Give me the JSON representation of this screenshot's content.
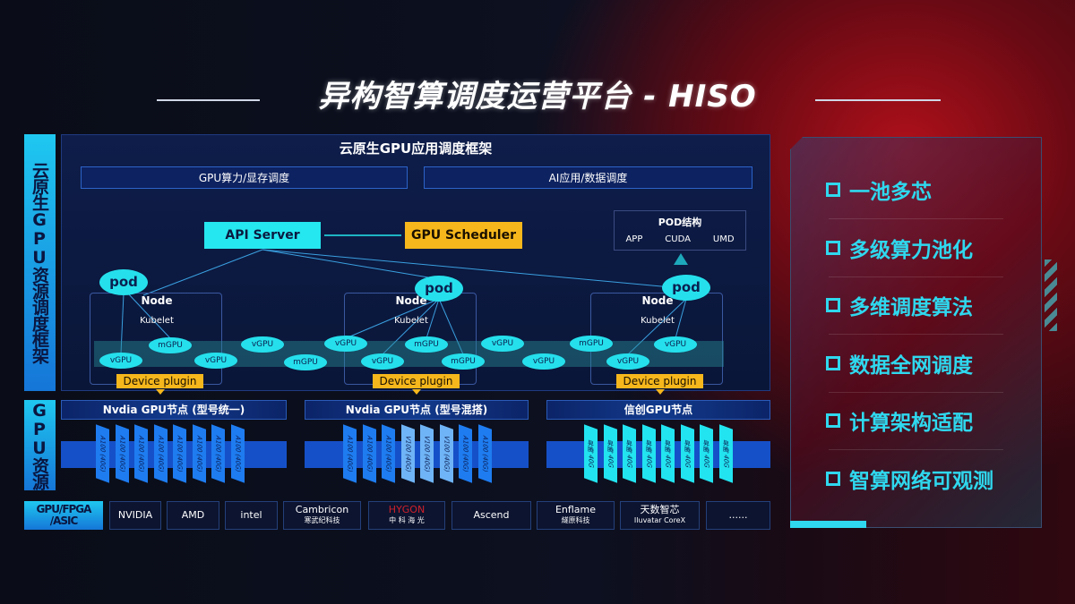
{
  "title": "异构智算调度运营平台 - HISO",
  "left_labels": {
    "framework": "云原生GPU资源调度框架",
    "gpu": "GPU资源",
    "chips": "GPU/FPGA /ASIC"
  },
  "framework": {
    "header": "云原生GPU应用调度框架",
    "sub1": "GPU算力/显存调度",
    "sub2": "AI应用/数据调度",
    "api_server": "API Server",
    "gpu_scheduler": "GPU Scheduler",
    "pod_struct": {
      "title": "POD结构",
      "items": [
        "APP",
        "CUDA",
        "UMD"
      ]
    },
    "node_label": "Node",
    "kubelet_label": "Kubelet",
    "pod_label": "pod",
    "device_plugin": "Device plugin",
    "units": [
      "vGPU",
      "mGPU",
      "vGPU",
      "vGPU",
      "mGPU",
      "vGPU",
      "vGPU",
      "mGPU",
      "mGPU",
      "vGPU",
      "vGPU",
      "mGPU",
      "vGPU",
      "vGPU"
    ]
  },
  "gpu_nodes": [
    {
      "title": "Nvdia GPU节点 (型号统一)",
      "cards": [
        "A100 (40G)",
        "A100 (40G)",
        "A100 (40G)",
        "A100 (40G)",
        "A100 (40G)",
        "A100 (40G)",
        "A100 (40G)",
        "A100 (40G)"
      ],
      "color": "#1e7cf0"
    },
    {
      "title": "Nvdia GPU节点 (型号混搭)",
      "cards": [
        "A100 (40G)",
        "A100 (40G)",
        "A100 (40G)",
        "V100 (40G)",
        "V100 (40G)",
        "V100 (40G)",
        "A100 (40G)",
        "A100 (40G)"
      ],
      "color": "#1e7cf0",
      "alt_color": "#6fb4f6"
    },
    {
      "title": "信创GPU节点",
      "cards": [
        "昇腾 40G",
        "昇腾 40G",
        "昇腾 40G",
        "昇腾 40G",
        "昇腾 40G",
        "昇腾 40G",
        "昇腾 40G",
        "昇腾 40G"
      ],
      "color": "#22e4f0"
    }
  ],
  "vendors": [
    {
      "name": "NVIDIA"
    },
    {
      "name": "AMD"
    },
    {
      "name": "intel"
    },
    {
      "name": "Cambricon",
      "sub": "寒武纪科技"
    },
    {
      "name": "HYGON",
      "sub": "中 科 海 光"
    },
    {
      "name": "Ascend"
    },
    {
      "name": "Enflame",
      "sub": "燧原科技"
    },
    {
      "name": "天数智芯",
      "sub": "Iluvatar CoreX"
    },
    {
      "name": "......"
    }
  ],
  "features": [
    "一池多芯",
    "多级算力池化",
    "多维调度算法",
    "数据全网调度",
    "计算架构适配",
    "智算网络可观测"
  ],
  "colors": {
    "cyan": "#25e7ef",
    "yellow": "#f5b71c",
    "blue": "#1e7cf0"
  }
}
